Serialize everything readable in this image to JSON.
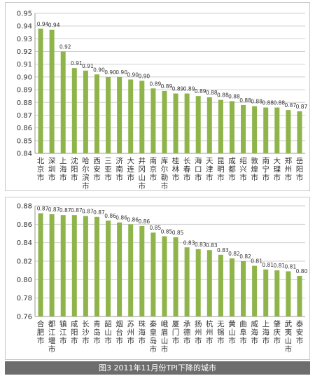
{
  "caption": "图3  2011年11月份TPI下降的城市",
  "colors": {
    "bar": "#8fb449",
    "grid": "#cfcfcf",
    "axis": "#999999",
    "text": "#333333",
    "caption_bg": "#6d6d6d"
  },
  "chart_data": [
    {
      "type": "bar",
      "title": "",
      "xlabel": "",
      "ylabel": "",
      "ylim": [
        0.84,
        0.95
      ],
      "yticks": [
        "0.84",
        "0.85",
        "0.86",
        "0.87",
        "0.88",
        "0.89",
        "0.90",
        "0.91",
        "0.92",
        "0.93",
        "0.94",
        "0.95"
      ],
      "grid": true,
      "categories": [
        "北京市",
        "深圳市",
        "上海市",
        "沈阳市",
        "哈尔滨市",
        "西安市",
        "三亚市",
        "济南市",
        "大连市",
        "井冈山市",
        "南京市",
        "库尔勒市",
        "桂林市",
        "长春市",
        "海口市",
        "天津市",
        "昆明市",
        "成都市",
        "绍兴市",
        "敦煌市",
        "南宁市",
        "大理市",
        "郑州市",
        "岳阳市"
      ],
      "values": [
        0.938,
        0.937,
        0.92,
        0.907,
        0.905,
        0.902,
        0.9,
        0.9,
        0.898,
        0.897,
        0.891,
        0.889,
        0.887,
        0.887,
        0.885,
        0.884,
        0.882,
        0.881,
        0.878,
        0.877,
        0.876,
        0.876,
        0.874,
        0.873
      ],
      "labels": [
        "0.94",
        "0.94",
        "0.92",
        "0.91",
        "0.91",
        "0.90",
        "0.90",
        "0.90",
        "0.90",
        "0.90",
        "0.89",
        "0.89",
        "0.89",
        "0.89",
        "0.89",
        "0.88",
        "0.88",
        "0.88",
        "0.88",
        "0.88",
        "0.88",
        "0.88",
        "0.87",
        "0.87"
      ]
    },
    {
      "type": "bar",
      "title": "",
      "xlabel": "",
      "ylabel": "",
      "ylim": [
        0.76,
        0.88
      ],
      "yticks": [
        "0.76",
        "0.78",
        "0.80",
        "0.82",
        "0.84",
        "0.86",
        "0.88"
      ],
      "grid": true,
      "categories": [
        "合肥市",
        "都江堰市",
        "镇江市",
        "咸阳市",
        "长沙市",
        "青岛市",
        "韶山市",
        "烟台市",
        "苏州市",
        "珠海市",
        "秦皇岛市",
        "峨眉山市",
        "厦门市",
        "承德市",
        "扬州市",
        "杭州市",
        "无锡市",
        "黄山市",
        "曲阜市",
        "威海市",
        "上海市",
        "肇庆市",
        "武夷山市",
        "泰安市"
      ],
      "values": [
        0.872,
        0.871,
        0.87,
        0.87,
        0.869,
        0.868,
        0.864,
        0.862,
        0.86,
        0.858,
        0.851,
        0.847,
        0.846,
        0.835,
        0.833,
        0.832,
        0.827,
        0.823,
        0.82,
        0.815,
        0.811,
        0.81,
        0.809,
        0.804
      ],
      "labels": [
        "0.87",
        "0.87",
        "0.87",
        "0.87",
        "0.87",
        "0.87",
        "0.86",
        "0.86",
        "0.86",
        "0.86",
        "0.85",
        "0.85",
        "0.85",
        "0.83",
        "0.83",
        "0.83",
        "0.83",
        "0.82",
        "0.82",
        "0.81",
        "0.81",
        "0.81",
        "0.81",
        "0.80"
      ]
    }
  ]
}
